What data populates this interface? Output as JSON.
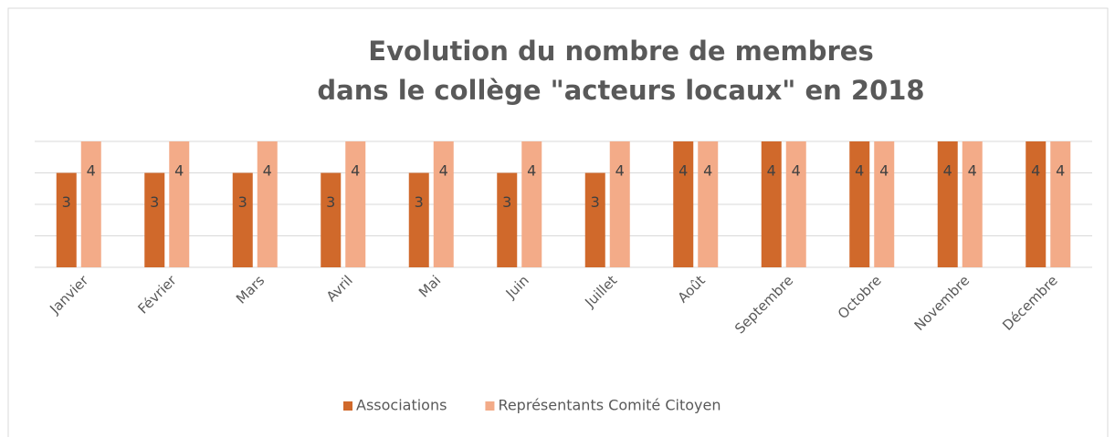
{
  "chart_data": {
    "type": "bar",
    "title": [
      "Evolution du nombre de membres",
      "dans le collège \"acteurs locaux\" en 2018"
    ],
    "categories": [
      "Janvier",
      "Février",
      "Mars",
      "Avril",
      "Mai",
      "Juin",
      "Juillet",
      "Août",
      "Septembre",
      "Octobre",
      "Novembre",
      "Décembre"
    ],
    "series": [
      {
        "name": "Associations",
        "color": "#d0692b",
        "values": [
          3,
          3,
          3,
          3,
          3,
          3,
          3,
          4,
          4,
          4,
          4,
          4
        ]
      },
      {
        "name": "Représentants Comité Citoyen",
        "color": "#f3ab88",
        "values": [
          4,
          4,
          4,
          4,
          4,
          4,
          4,
          4,
          4,
          4,
          4,
          4
        ]
      }
    ],
    "ylim": [
      0,
      4
    ],
    "yticks": [
      0,
      1,
      2,
      3,
      4
    ],
    "grid": true,
    "legend": "bottom"
  }
}
